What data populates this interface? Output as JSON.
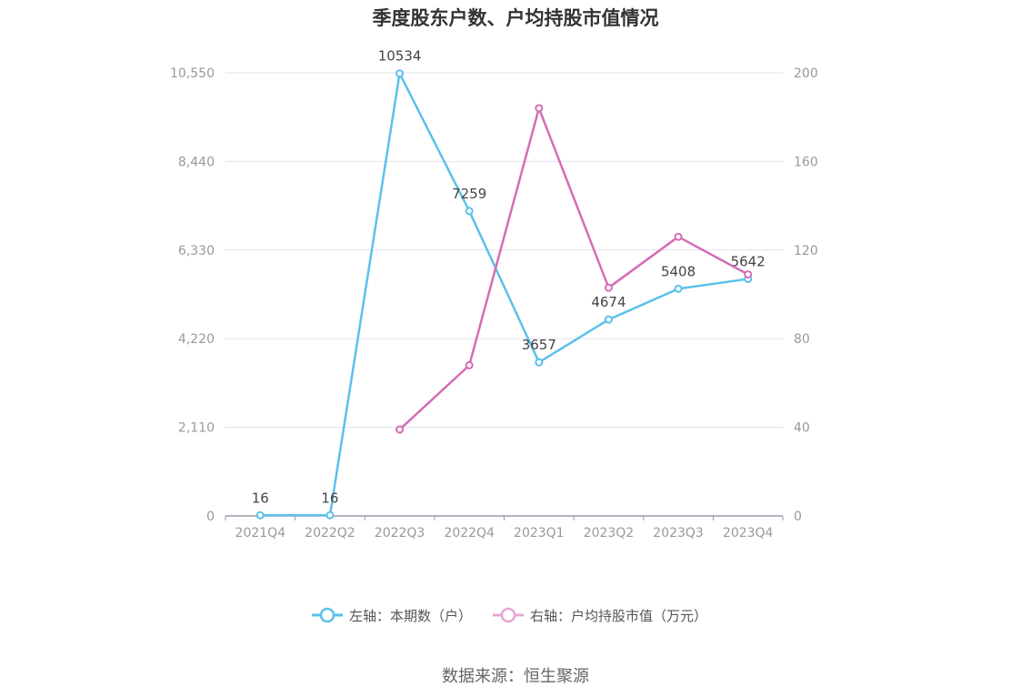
{
  "chart_data": {
    "type": "line",
    "title": "季度股东户数、户均持股市值情况",
    "categories": [
      "2021Q4",
      "2022Q2",
      "2022Q3",
      "2022Q4",
      "2023Q1",
      "2023Q2",
      "2023Q3",
      "2023Q4"
    ],
    "left_axis": {
      "ticks": [
        "0",
        "2,110",
        "4,220",
        "6,330",
        "8,440",
        "10,550"
      ],
      "min": 0,
      "max": 10550
    },
    "right_axis": {
      "ticks": [
        "0",
        "40",
        "80",
        "120",
        "160",
        "200"
      ],
      "min": 0,
      "max": 200
    },
    "series": [
      {
        "name": "左轴：本期数（户）",
        "axis": "left",
        "color": "#5bc0eb",
        "values": [
          16,
          16,
          10534,
          7259,
          3657,
          4674,
          5408,
          5642
        ],
        "labels": [
          "16",
          "16",
          "10534",
          "7259",
          "3657",
          "4674",
          "5408",
          "5642"
        ]
      },
      {
        "name": "右轴：户均持股市值（万元）",
        "axis": "right",
        "color": "#d46db5",
        "values": [
          null,
          null,
          39,
          68,
          184,
          103,
          126,
          109
        ]
      }
    ],
    "grid": true,
    "legend_position": "bottom"
  },
  "source": "数据来源：恒生聚源"
}
